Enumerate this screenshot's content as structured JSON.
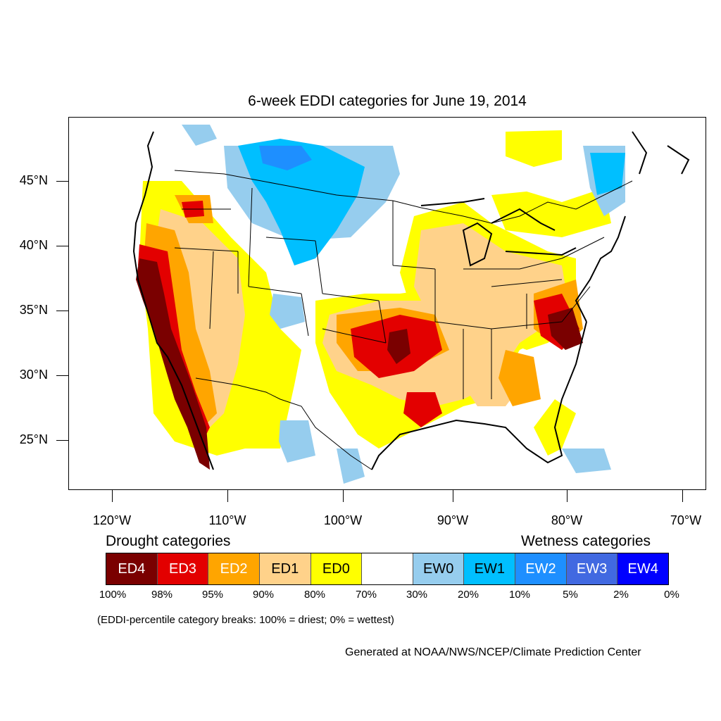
{
  "title": "6-week EDDI categories for June 19, 2014",
  "lat_labels": [
    "45°N",
    "40°N",
    "35°N",
    "30°N",
    "25°N"
  ],
  "lon_labels": [
    "120°W",
    "110°W",
    "100°W",
    "90°W",
    "80°W",
    "70°W"
  ],
  "legend": {
    "drought_title": "Drought categories",
    "wetness_title": "Wetness categories",
    "categories": [
      {
        "label": "ED4",
        "color": "#7a0000",
        "text_color": "#ffffff"
      },
      {
        "label": "ED3",
        "color": "#e30000",
        "text_color": "#ffffff"
      },
      {
        "label": "ED2",
        "color": "#ffa500",
        "text_color": "#ffffff"
      },
      {
        "label": "ED1",
        "color": "#ffd28a",
        "text_color": "#000000"
      },
      {
        "label": "ED0",
        "color": "#ffff00",
        "text_color": "#000000"
      },
      {
        "label": "",
        "color": "#ffffff",
        "text_color": "#000000"
      },
      {
        "label": "EW0",
        "color": "#96cdee",
        "text_color": "#000000"
      },
      {
        "label": "EW1",
        "color": "#00bfff",
        "text_color": "#000000"
      },
      {
        "label": "EW2",
        "color": "#1e8fff",
        "text_color": "#ffffff"
      },
      {
        "label": "EW3",
        "color": "#4169e1",
        "text_color": "#ffffff"
      },
      {
        "label": "EW4",
        "color": "#0000ff",
        "text_color": "#ffffff"
      }
    ],
    "percentiles": [
      "100%",
      "98%",
      "95%",
      "90%",
      "80%",
      "70%",
      "30%",
      "20%",
      "10%",
      "5%",
      "2%",
      "0%"
    ]
  },
  "note": "(EDDI-percentile category breaks: 100% = driest; 0% = wettest)",
  "credit": "Generated at NOAA/NWS/NCEP/Climate Prediction Center"
}
